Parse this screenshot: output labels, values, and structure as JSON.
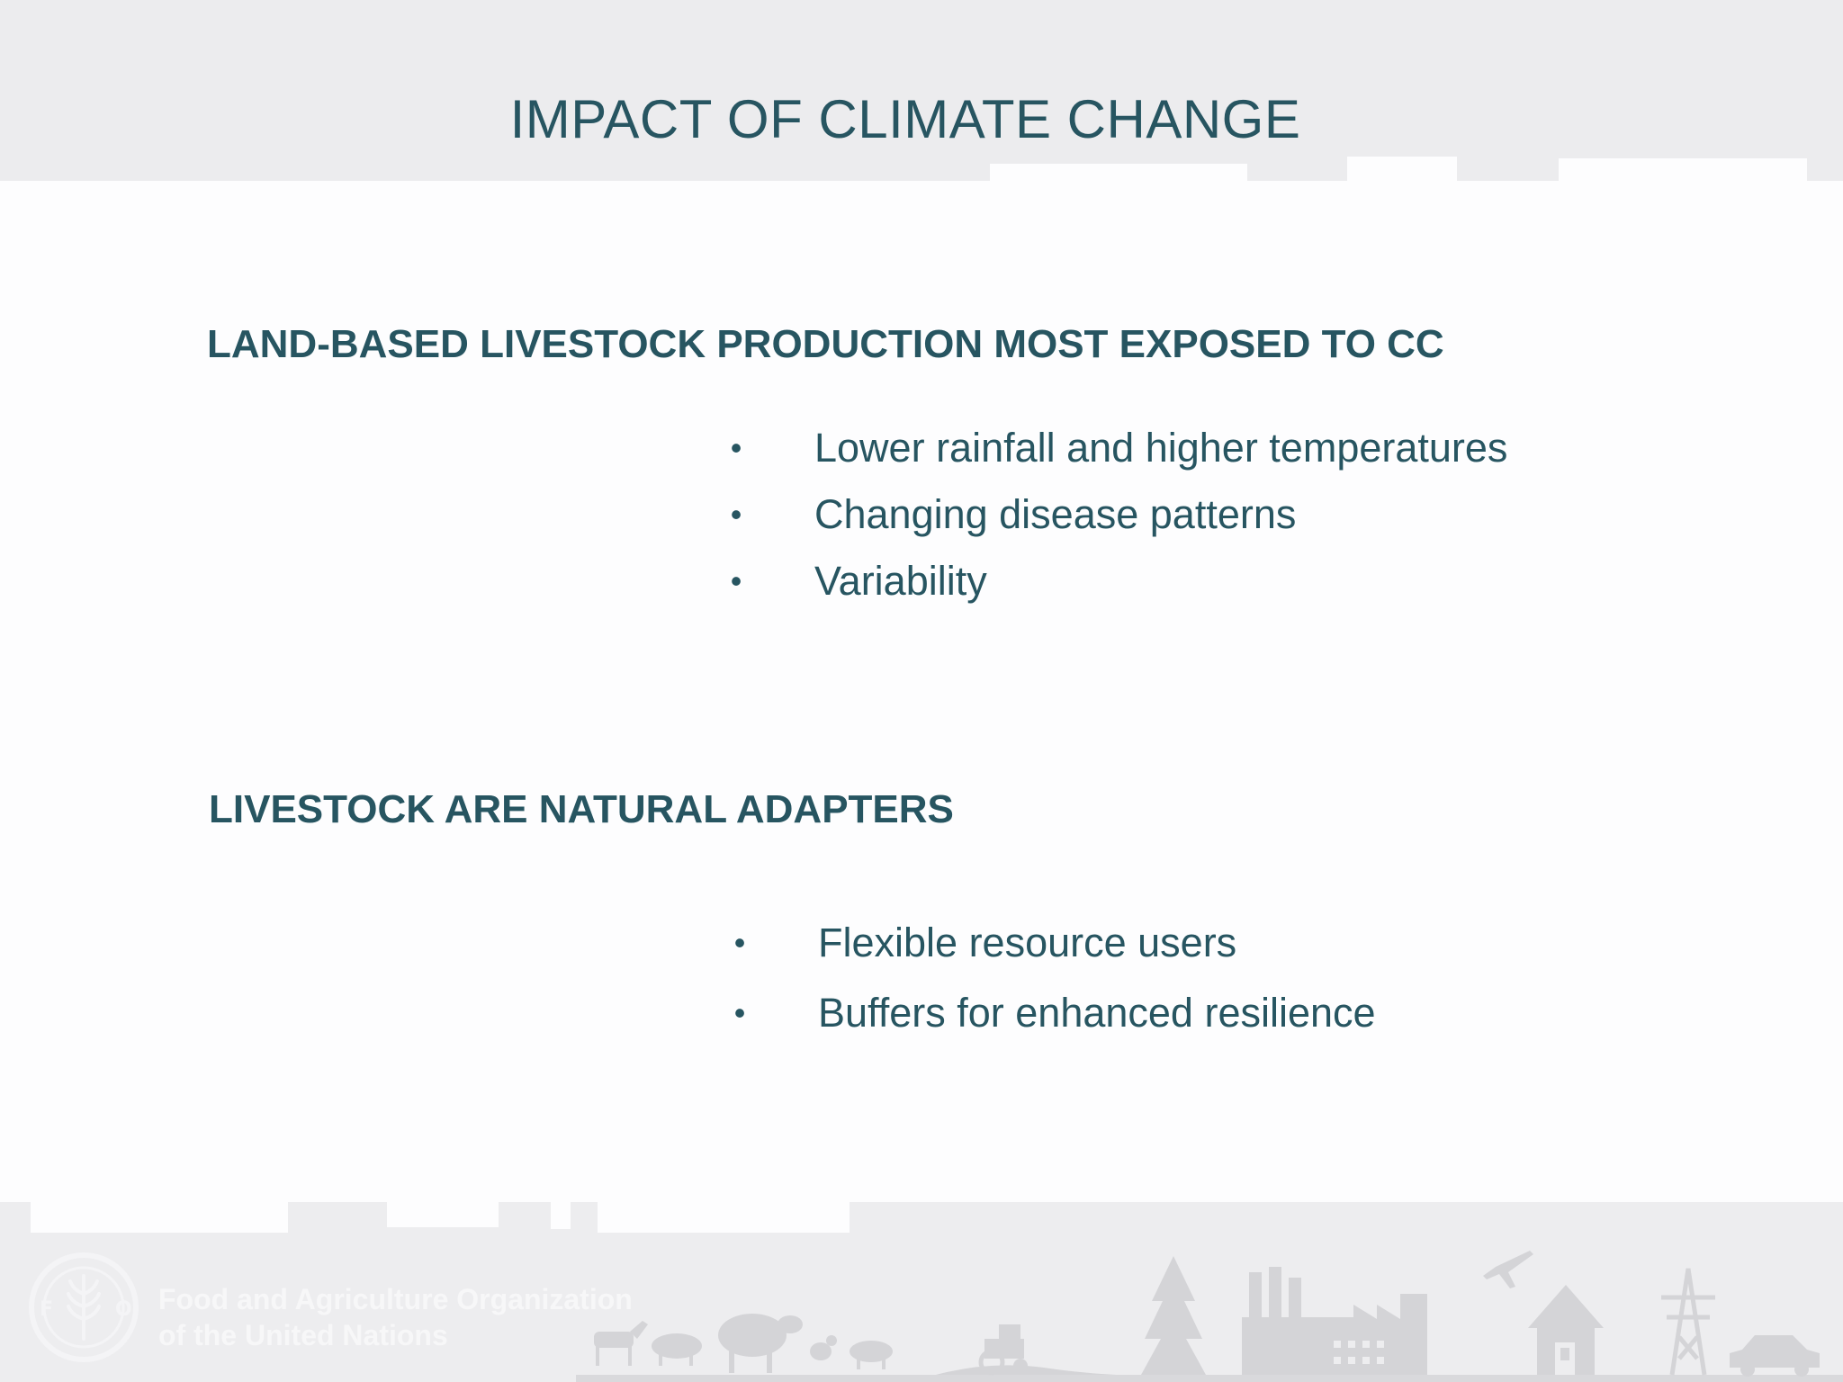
{
  "title": "IMPACT OF CLIMATE CHANGE",
  "sections": [
    {
      "heading": "LAND-BASED LIVESTOCK PRODUCTION MOST EXPOSED TO CC",
      "bullets": [
        "Lower rainfall and higher temperatures",
        "Changing disease patterns",
        "Variability"
      ]
    },
    {
      "heading": "LIVESTOCK ARE NATURAL ADAPTERS",
      "bullets": [
        "Flexible resource users",
        "Buffers for enhanced resilience"
      ]
    }
  ],
  "bullet_symbol": "•",
  "footer": {
    "org_line1": "Food and Agriculture Organization",
    "org_line2": "of the United Nations",
    "logo_icon": "fao-logo-icon",
    "illustration_icons": [
      "goat-icon",
      "pig-icon",
      "sheep-icon",
      "chicken-icon",
      "tractor-icon",
      "tree-icon",
      "factory-icon",
      "airplane-icon",
      "house-icon",
      "power-pylon-icon",
      "car-icon"
    ]
  },
  "colors": {
    "text": "#275561",
    "header_band": "#ececee",
    "footer_band": "#ededef",
    "background": "#fdfdfe",
    "illustration": "#d4d4d7"
  }
}
